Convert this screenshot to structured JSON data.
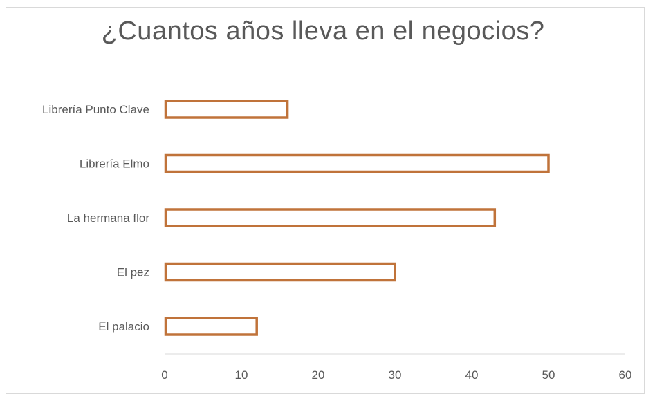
{
  "chart_data": {
    "type": "bar",
    "orientation": "horizontal",
    "title": "¿Cuantos años lleva en el negocios?",
    "categories": [
      "Librería Punto Clave",
      "Librería Elmo",
      "La hermana flor",
      "El pez",
      "El palacio"
    ],
    "values": [
      16,
      50,
      43,
      30,
      12
    ],
    "xlim": [
      0,
      60
    ],
    "xticks": [
      "0",
      "10",
      "20",
      "30",
      "40",
      "50",
      "60"
    ],
    "grid": false,
    "legend": "none",
    "bar_outline_color": "#C0733A",
    "bar_fill_color": "#ffffff",
    "axis_color": "#d9d9d9"
  }
}
